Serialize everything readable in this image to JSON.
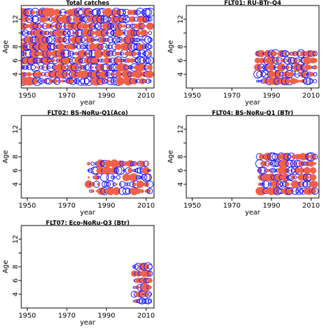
{
  "chart_data": [
    {
      "type": "scatter",
      "title": "Total catches",
      "xlabel": "year",
      "ylabel": "Age",
      "xlim": [
        1947,
        2014
      ],
      "ylim": [
        2,
        14
      ],
      "xticks": [
        1950,
        1970,
        1990,
        2010
      ],
      "yticks": [
        4,
        6,
        8,
        12
      ],
      "yticks_minor": [
        10
      ],
      "xrange": [
        1947,
        2012
      ],
      "ages": [
        3,
        4,
        5,
        6,
        7,
        8,
        9,
        10,
        11,
        12,
        13
      ],
      "pattern": "dense"
    },
    {
      "type": "scatter",
      "title": "FLT01: RU-BTr-Q4",
      "xlabel": "year",
      "ylabel": "Age",
      "xlim": [
        1947,
        2014
      ],
      "ylim": [
        2,
        14
      ],
      "xticks": [
        1950,
        1970,
        1990,
        2010
      ],
      "yticks": [
        4,
        6,
        8,
        12
      ],
      "yticks_minor": [
        10
      ],
      "xrange": [
        1983,
        2012
      ],
      "ages": [
        3,
        4,
        5,
        6,
        7
      ],
      "pattern": "medium"
    },
    {
      "type": "scatter",
      "title": "FLT02: BS-NoRu-Q1(Aco)",
      "xlabel": "year",
      "ylabel": "Age",
      "xlim": [
        1947,
        2014
      ],
      "ylim": [
        2,
        14
      ],
      "xticks": [
        1950,
        1970,
        1990,
        2010
      ],
      "yticks": [
        4,
        6,
        8,
        12
      ],
      "yticks_minor": [
        10
      ],
      "xrange": [
        1981,
        2012
      ],
      "ages": [
        3,
        4,
        5,
        6,
        7
      ],
      "pattern": "sparse"
    },
    {
      "type": "scatter",
      "title": "FLT04: BS-NoRu-Q1 (BTr)",
      "xlabel": "year",
      "ylabel": "Age",
      "xlim": [
        1947,
        2014
      ],
      "ylim": [
        2,
        14
      ],
      "xticks": [
        1950,
        1970,
        1990,
        2010
      ],
      "yticks": [
        4,
        6,
        8,
        12
      ],
      "yticks_minor": [
        10
      ],
      "xrange": [
        1984,
        2012
      ],
      "ages": [
        3,
        4,
        5,
        6,
        7,
        8
      ],
      "pattern": "medium"
    },
    {
      "type": "scatter",
      "title": "FLT07: Eco-NoRu-Q3 (Btr)",
      "xlabel": "year",
      "ylabel": "Age",
      "xlim": [
        1947,
        2014
      ],
      "ylim": [
        2,
        14
      ],
      "xticks": [
        1950,
        1970,
        1990,
        2010
      ],
      "yticks": [
        4,
        6,
        8,
        12
      ],
      "yticks_minor": [
        10
      ],
      "xrange": [
        2004,
        2012
      ],
      "ages": [
        3,
        4,
        5,
        6,
        7,
        8
      ],
      "pattern": "medium"
    }
  ],
  "colors": {
    "positive": "#f0614a",
    "negative": "#1a1aff"
  }
}
